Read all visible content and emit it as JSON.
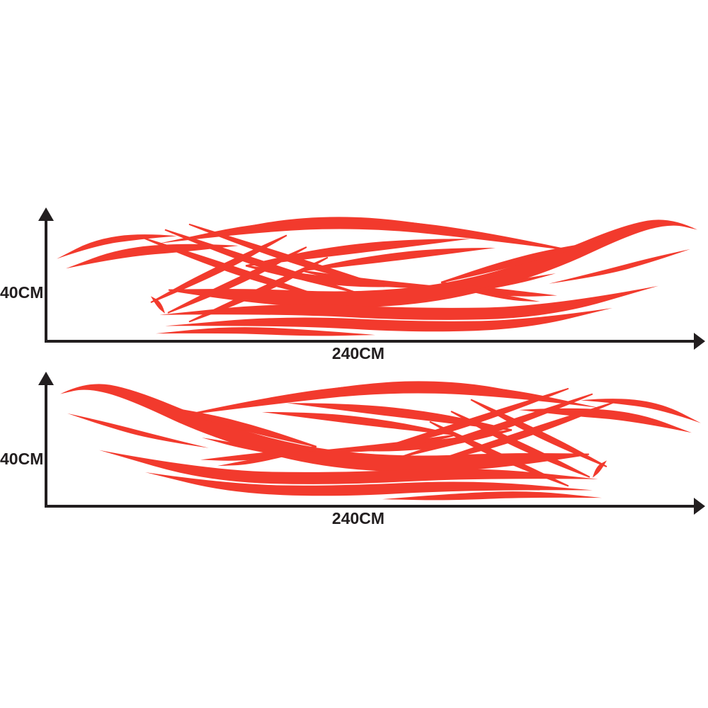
{
  "colors": {
    "decal_red": "#f23a2d",
    "axis_ink": "#221e1f",
    "background": "#ffffff"
  },
  "figures": [
    {
      "id": "top",
      "decal_icon": "red-tribal-swirl-decal",
      "mirrored": false,
      "height_label": "40CM",
      "width_label": "240CM"
    },
    {
      "id": "bottom",
      "decal_icon": "red-tribal-swirl-decal-mirrored",
      "mirrored": true,
      "height_label": "40CM",
      "width_label": "240CM"
    }
  ]
}
